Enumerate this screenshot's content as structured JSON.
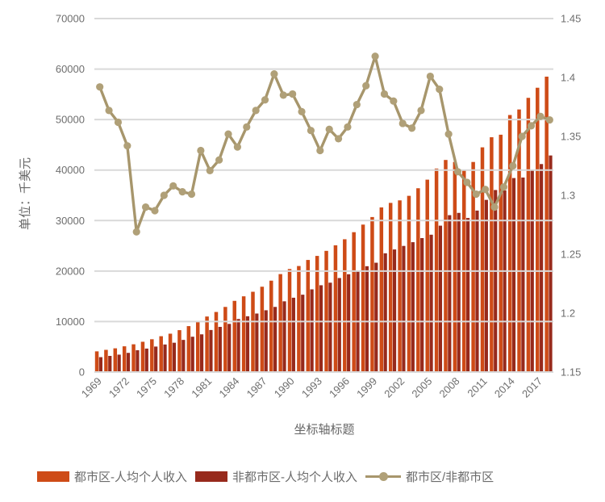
{
  "chart_data": {
    "type": "combo-bar-line",
    "x": [
      1969,
      1970,
      1971,
      1972,
      1973,
      1974,
      1975,
      1976,
      1977,
      1978,
      1979,
      1980,
      1981,
      1982,
      1983,
      1984,
      1985,
      1986,
      1987,
      1988,
      1989,
      1990,
      1991,
      1992,
      1993,
      1994,
      1995,
      1996,
      1997,
      1998,
      1999,
      2000,
      2001,
      2002,
      2003,
      2004,
      2005,
      2006,
      2007,
      2008,
      2009,
      2010,
      2011,
      2012,
      2013,
      2014,
      2015,
      2016,
      2017,
      2018
    ],
    "series": [
      {
        "name": "都市区-人均个人收入",
        "type": "bar",
        "axis": "left",
        "color": "#CE4B17",
        "values": [
          4100,
          4400,
          4700,
          5100,
          5500,
          6000,
          6500,
          7100,
          7600,
          8300,
          9100,
          10000,
          11000,
          11900,
          12900,
          14100,
          15000,
          15900,
          16900,
          18100,
          19400,
          20400,
          21000,
          22200,
          23000,
          24000,
          25100,
          26300,
          27700,
          29200,
          30700,
          32600,
          33500,
          34000,
          34900,
          36400,
          38100,
          40300,
          42000,
          41600,
          40000,
          41600,
          44500,
          46500,
          47000,
          50900,
          52000,
          54300,
          56300,
          58500
        ]
      },
      {
        "name": "非都市区-人均个人收入",
        "type": "bar",
        "axis": "left",
        "color": "#972A1C",
        "values": [
          2950,
          3200,
          3450,
          3800,
          4330,
          4650,
          5050,
          5460,
          5810,
          6370,
          7000,
          7470,
          8330,
          8950,
          9540,
          10510,
          11050,
          11590,
          12240,
          12900,
          14010,
          14720,
          15320,
          16380,
          17190,
          17700,
          18620,
          19370,
          20120,
          20960,
          21650,
          23520,
          24280,
          24980,
          25720,
          26530,
          27200,
          28990,
          31070,
          31520,
          30510,
          31980,
          34100,
          36050,
          35960,
          38420,
          38520,
          39960,
          41190,
          42890
        ]
      },
      {
        "name": "都市区/非都市区",
        "type": "line",
        "axis": "right",
        "color": "#A7966C",
        "marker_color": "#B0A078",
        "values": [
          1.392,
          1.372,
          1.362,
          1.342,
          1.269,
          1.29,
          1.287,
          1.3,
          1.308,
          1.303,
          1.301,
          1.338,
          1.321,
          1.33,
          1.352,
          1.341,
          1.358,
          1.372,
          1.381,
          1.403,
          1.385,
          1.386,
          1.371,
          1.355,
          1.338,
          1.356,
          1.348,
          1.358,
          1.377,
          1.393,
          1.418,
          1.386,
          1.38,
          1.361,
          1.357,
          1.372,
          1.401,
          1.39,
          1.352,
          1.32,
          1.311,
          1.301,
          1.305,
          1.29,
          1.307,
          1.325,
          1.35,
          1.359,
          1.367,
          1.364
        ]
      }
    ],
    "left_axis": {
      "title": "单位：千美元",
      "min": 0,
      "max": 70000,
      "tick_labels": [
        "0",
        "10000",
        "20000",
        "30000",
        "40000",
        "50000",
        "60000",
        "70000"
      ],
      "tick_values": [
        0,
        10000,
        20000,
        30000,
        40000,
        50000,
        60000,
        70000
      ]
    },
    "right_axis": {
      "min": 1.15,
      "max": 1.45,
      "tick_labels": [
        "1.15",
        "1.2",
        "1.25",
        "1.3",
        "1.35",
        "1.4",
        "1.45"
      ],
      "tick_values": [
        1.15,
        1.2,
        1.25,
        1.3,
        1.35,
        1.4,
        1.45
      ]
    },
    "x_axis": {
      "title": "坐标轴标题",
      "tick_years": [
        1969,
        1972,
        1975,
        1978,
        1981,
        1984,
        1987,
        1990,
        1993,
        1996,
        1999,
        2002,
        2005,
        2008,
        2011,
        2014,
        2017
      ]
    },
    "grid": true,
    "gridline_color": "#D9D9D9",
    "legend_position": "bottom"
  },
  "legend": {
    "bar1_label": "都市区-人均个人收入",
    "bar2_label": "非都市区-人均个人收入",
    "line_label": "都市区/非都市区"
  }
}
